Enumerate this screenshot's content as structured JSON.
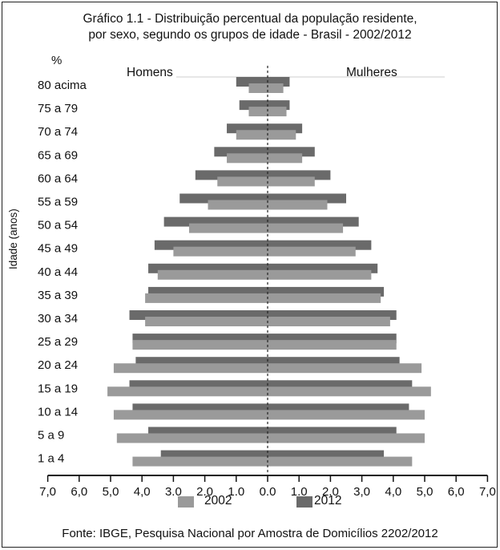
{
  "chart_data": {
    "type": "bar",
    "orientation": "horizontal",
    "subtype": "population-pyramid",
    "title": "Gráfico 1.1 - Distribuição percentual da população residente,",
    "subtitle": "por sexo, segundo os grupos de idade - Brasil - 2002/2012",
    "unit_label": "%",
    "ylabel": "Idade (anos)",
    "left_label": "Homens",
    "right_label": "Mulheres",
    "x_ticks": [
      "7,0",
      "6,0",
      "5,0",
      "4,0",
      "3.0",
      "2.0",
      "1.0",
      "0.0",
      "1.0",
      "2.0",
      "3,0",
      "4,0",
      "5,0",
      "6,0",
      "7,0"
    ],
    "xlim": [
      -7,
      7
    ],
    "categories": [
      "80 acima",
      "75 a 79",
      "70 a 74",
      "65 a 69",
      "60 a 64",
      "55 a 59",
      "50 a 54",
      "45 a 49",
      "40 a 44",
      "35 a 39",
      "30 a 34",
      "25 a 29",
      "20 a 24",
      "15 a 19",
      "10 a 14",
      "5 a 9",
      "1 a 4"
    ],
    "series": [
      {
        "name": "2002",
        "color": "#9a9a9a",
        "homens": [
          0.6,
          0.6,
          1.0,
          1.3,
          1.6,
          1.9,
          2.5,
          3.0,
          3.5,
          3.9,
          3.9,
          4.3,
          4.9,
          5.1,
          4.9,
          4.8,
          4.3
        ],
        "mulheres": [
          0.5,
          0.6,
          0.9,
          1.1,
          1.5,
          1.9,
          2.4,
          2.8,
          3.3,
          3.6,
          3.9,
          4.1,
          4.9,
          5.2,
          5.0,
          5.0,
          4.6
        ]
      },
      {
        "name": "2012",
        "color": "#6a6a6a",
        "homens": [
          1.0,
          0.9,
          1.3,
          1.7,
          2.3,
          2.8,
          3.3,
          3.6,
          3.8,
          3.8,
          4.4,
          4.3,
          4.2,
          4.4,
          4.3,
          3.8,
          3.4
        ],
        "mulheres": [
          0.7,
          0.7,
          1.1,
          1.5,
          2.0,
          2.5,
          2.9,
          3.3,
          3.5,
          3.7,
          4.1,
          4.1,
          4.2,
          4.6,
          4.5,
          4.1,
          3.7
        ]
      }
    ],
    "legend_position": "bottom",
    "source": "Fonte: IBGE, Pesquisa Nacional por Amostra de Domicílios 2202/2012"
  }
}
